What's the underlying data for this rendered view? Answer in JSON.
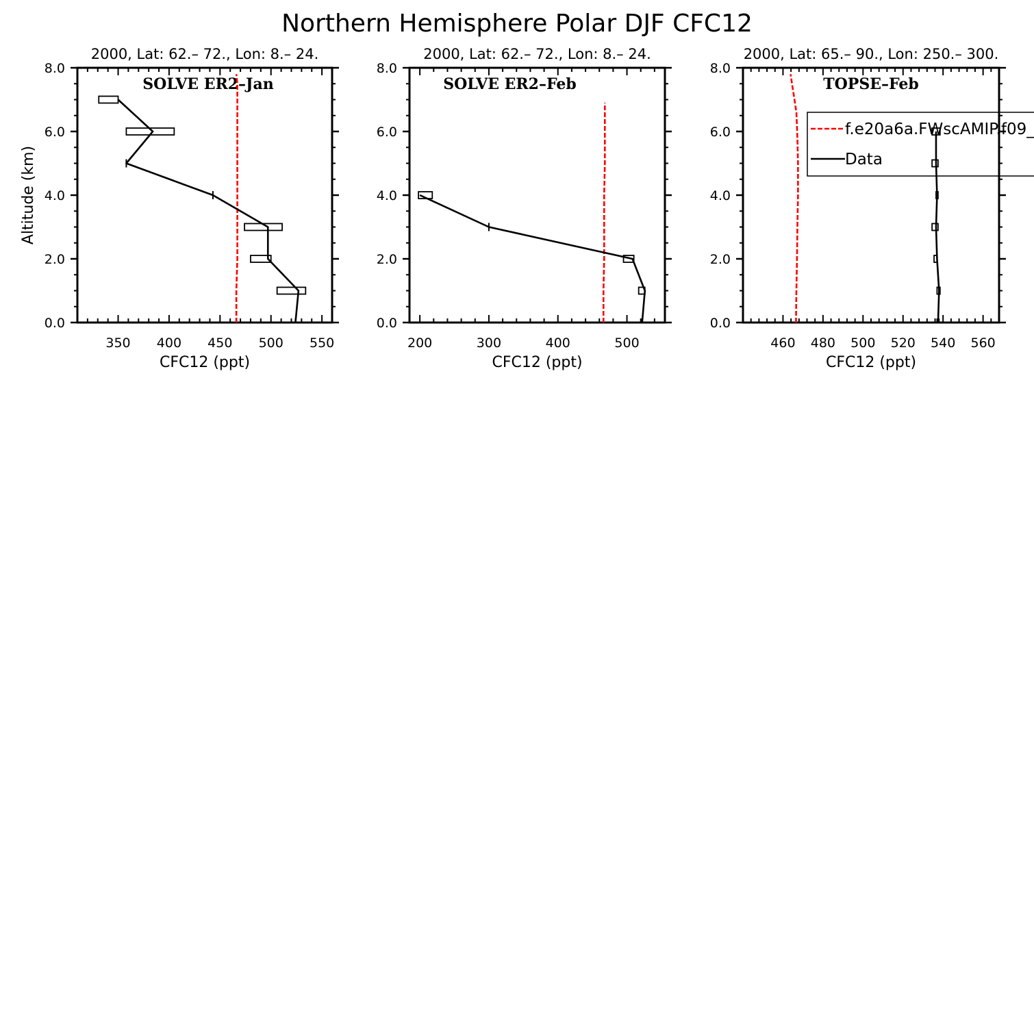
{
  "figure_title": "Northern Hemisphere Polar DJF CFC12",
  "colors": {
    "model": "#ff0000",
    "data": "#000000"
  },
  "chart_data": [
    {
      "type": "line",
      "header": "2000, Lat: 62.– 72., Lon: 8.– 24.",
      "panel_label": "SOLVE ER2–Jan",
      "xlabel": "CFC12 (ppt)",
      "ylabel": "Altitude (km)",
      "xlim": [
        310,
        560
      ],
      "ylim": [
        0,
        8
      ],
      "xticks": [
        350,
        400,
        450,
        500,
        550
      ],
      "xtick_labels": [
        "350",
        "400",
        "450",
        "500",
        "550"
      ],
      "yticks": [
        0,
        2,
        4,
        6,
        8
      ],
      "ytick_labels": [
        "0.0",
        "2.0",
        "4.0",
        "6.0",
        "8.0"
      ],
      "series": [
        {
          "role": "model",
          "x": [
            466,
            466,
            467,
            467,
            467,
            467,
            467,
            467,
            467,
            466
          ],
          "y": [
            0,
            1,
            2,
            3,
            4,
            5,
            6,
            7,
            7.5,
            7.8
          ]
        },
        {
          "role": "data",
          "x": [
            524,
            527,
            497,
            497,
            443,
            358,
            384,
            350
          ],
          "y": [
            0,
            1,
            2,
            3,
            4,
            5,
            6,
            7
          ],
          "err_low": [
            524,
            506,
            480,
            474,
            443,
            358,
            358,
            331
          ],
          "err_high": [
            524,
            534,
            500,
            511,
            443,
            358,
            405,
            350
          ]
        }
      ]
    },
    {
      "type": "line",
      "header": "2000, Lat: 62.– 72., Lon: 8.– 24.",
      "panel_label": "SOLVE ER2–Feb",
      "xlabel": "CFC12 (ppt)",
      "ylabel": "",
      "xlim": [
        185,
        555
      ],
      "ylim": [
        0,
        8
      ],
      "xticks": [
        200,
        300,
        400,
        500
      ],
      "xtick_labels": [
        "200",
        "300",
        "400",
        "500"
      ],
      "yticks": [
        0,
        2,
        4,
        6,
        8
      ],
      "ytick_labels": [
        "0.0",
        "2.0",
        "4.0",
        "6.0",
        "8.0"
      ],
      "series": [
        {
          "role": "model",
          "x": [
            466,
            466,
            467,
            467,
            467,
            468,
            468,
            468
          ],
          "y": [
            0,
            1,
            2,
            3,
            4,
            5,
            6,
            6.9
          ]
        },
        {
          "role": "data",
          "x": [
            522,
            526,
            508,
            300,
            200
          ],
          "y": [
            0,
            1,
            2,
            3,
            4
          ],
          "err_low": [
            522,
            517,
            495,
            300,
            198
          ],
          "err_high": [
            522,
            526,
            510,
            300,
            218
          ]
        }
      ]
    },
    {
      "type": "line",
      "header": "2000, Lat: 65.– 90., Lon: 250.– 300.",
      "panel_label": "TOPSE–Feb",
      "xlabel": "CFC12 (ppt)",
      "ylabel": "",
      "xlim": [
        440,
        568
      ],
      "ylim": [
        0,
        8
      ],
      "xticks": [
        460,
        480,
        500,
        520,
        540,
        560
      ],
      "xtick_labels": [
        "460",
        "480",
        "500",
        "520",
        "540",
        "560"
      ],
      "yticks": [
        0,
        2,
        4,
        6,
        8
      ],
      "ytick_labels": [
        "0.0",
        "2.0",
        "4.0",
        "6.0",
        "8.0"
      ],
      "legend": [
        {
          "label": "f.e20a6a.FWscAMIP.f09_",
          "style": "dashed",
          "role": "model"
        },
        {
          "label": "Data",
          "style": "solid",
          "role": "data"
        }
      ],
      "series": [
        {
          "role": "model",
          "x": [
            466.5,
            466.7,
            467,
            467.2,
            467.5,
            467.5,
            467.2,
            466.7,
            465.5,
            464.5,
            463.8
          ],
          "y": [
            0,
            1,
            2,
            3,
            4,
            5,
            5.8,
            6.6,
            7.1,
            7.5,
            7.8
          ]
        },
        {
          "role": "data",
          "x": [
            537.5,
            538,
            537,
            536.5,
            537,
            536.5,
            536.5
          ],
          "y": [
            0,
            1,
            2,
            3,
            4,
            5,
            6
          ],
          "err_low": [
            537,
            537,
            535.5,
            534.5,
            536.5,
            534.5,
            534.5
          ],
          "err_high": [
            538,
            538.5,
            537,
            537.5,
            537.5,
            537.5,
            538.5
          ]
        }
      ]
    }
  ]
}
